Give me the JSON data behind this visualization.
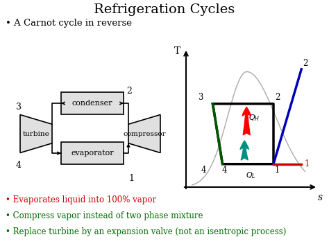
{
  "title": "Refrigeration Cycles",
  "bullet1": "• A Carnot cycle in reverse",
  "bullet2_red": "• Evaporates liquid into 100% vapor",
  "bullet3_green": "• Compress vapor instead of two phase mixture",
  "bullet4_green": "• Replace turbine by an expansion valve (not an isentropic process)",
  "bg_color": "#ffffff",
  "diagram_labels": {
    "condenser": "condenser",
    "evaporator": "evaporator",
    "turbine": "turbine",
    "compressor": "compressor"
  },
  "colors": {
    "black": "#000000",
    "red": "#cc0000",
    "blue": "#0000bb",
    "teal": "#009080",
    "green_dark": "#005500",
    "dark_green_bullet": "#006600",
    "gray": "#aaaaaa",
    "light_gray": "#d8d8d8",
    "box_gray": "#e0e0e0"
  },
  "figsize": [
    4.74,
    3.55
  ],
  "dpi": 100
}
